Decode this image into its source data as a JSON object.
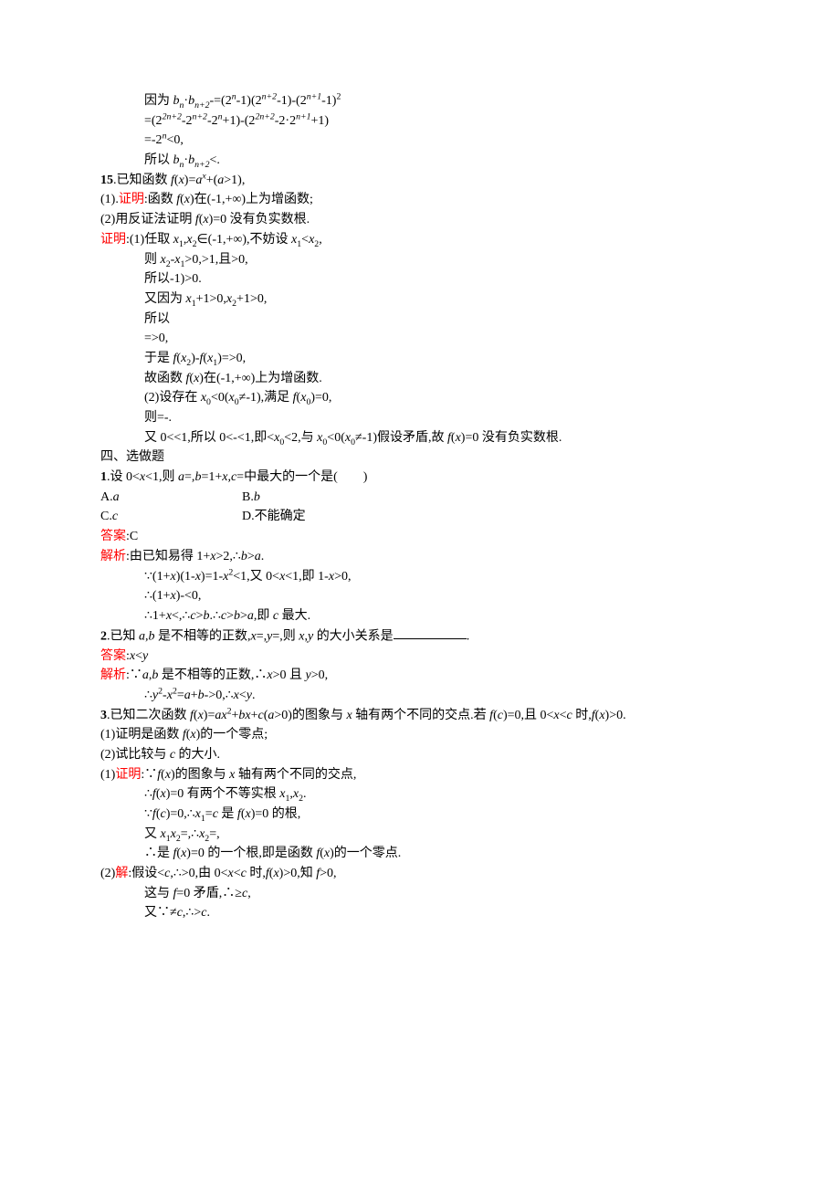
{
  "colors": {
    "red": "#ff0000",
    "text": "#000000",
    "bg": "#ffffff"
  },
  "fonts": {
    "body_family": "SimSun / Times New Roman",
    "body_size_pt": 10
  },
  "prelude": {
    "l1a": "因为 ",
    "l1b": "b",
    "l1c": "n",
    "l1d": "·",
    "l1e": "b",
    "l1f": "n+2",
    "l1g": "-=(2",
    "l1h": "n",
    "l1i": "-1)(2",
    "l1j": "n+2",
    "l1k": "-1)-(2",
    "l1l": "n+1",
    "l1m": "-1)",
    "l1n": "2",
    "l2a": "=(2",
    "l2b": "2n+2",
    "l2c": "-2",
    "l2d": "n+2",
    "l2e": "-2",
    "l2f": "n",
    "l2g": "+1)-(2",
    "l2h": "2n+2",
    "l2i": "-2·2",
    "l2j": "n+1",
    "l2k": "+1)",
    "l3a": "=-2",
    "l3b": "n",
    "l3c": "<0,",
    "l4a": "所以 ",
    "l4b": "b",
    "l4c": "n",
    "l4d": "·",
    "l4e": "b",
    "l4f": "n+2",
    "l4g": "<."
  },
  "q15": {
    "head1": "15",
    "head2": ".已知函数 ",
    "head3": "f",
    "head4": "(",
    "head5": "x",
    "head6": ")=",
    "head7": "a",
    "head8": "x",
    "head9": "+(",
    "head10": "a",
    "head11": ">1),",
    "p1a": "(1).",
    "p1b": "证明",
    "p1c": ":函数 ",
    "p1d": "f",
    "p1e": "(",
    "p1f": "x",
    "p1g": ")在(-1,+∞)上为增函数;",
    "p2a": "(2)用反证法证明 ",
    "p2b": "f",
    "p2c": "(",
    "p2d": "x",
    "p2e": ")=0 没有负实数根.",
    "pfLabel": "证明",
    "pf1": ":(1)任取 ",
    "pf1b": "x",
    "pf1c": "1",
    "pf1d": ",",
    "pf1e": "x",
    "pf1f": "2",
    "pf1g": "∈(-1,+∞),不妨设 ",
    "pf1h": "x",
    "pf1i": "1",
    "pf1j": "<",
    "pf1k": "x",
    "pf1l": "2",
    "pf1m": ",",
    "s1a": "则 ",
    "s1b": "x",
    "s1c": "2",
    "s1d": "-",
    "s1e": "x",
    "s1f": "1",
    "s1g": ">0,>1,且>0,",
    "s2": "所以-1)>0.",
    "s3a": "又因为 ",
    "s3b": "x",
    "s3c": "1",
    "s3d": "+1>0,",
    "s3e": "x",
    "s3f": "2",
    "s3g": "+1>0,",
    "s4": "所以",
    "s5": "=>0,",
    "s6a": "于是 ",
    "s6b": "f",
    "s6c": "(",
    "s6d": "x",
    "s6e": "2",
    "s6f": ")-",
    "s6g": "f",
    "s6h": "(",
    "s6i": "x",
    "s6j": "1",
    "s6k": ")=>0,",
    "s7a": "故函数 ",
    "s7b": "f",
    "s7c": "(",
    "s7d": "x",
    "s7e": ")在(-1,+∞)上为增函数.",
    "s8a": "(2)设存在 ",
    "s8b": "x",
    "s8c": "0",
    "s8d": "<0(",
    "s8e": "x",
    "s8f": "0",
    "s8g": "≠-1),满足 ",
    "s8h": "f",
    "s8i": "(",
    "s8j": "x",
    "s8k": "0",
    "s8l": ")=0,",
    "s9": "则=-.",
    "s10a": "又 0<<1,所以 0<-<1,即<",
    "s10b": "x",
    "s10c": "0",
    "s10d": "<2,与 ",
    "s10e": "x",
    "s10f": "0",
    "s10g": "<0(",
    "s10h": "x",
    "s10i": "0",
    "s10j": "≠-1)假设矛盾,故 ",
    "s10k": "f",
    "s10l": "(",
    "s10m": "x",
    "s10n": ")=0 没有负实数根."
  },
  "sec4": "四、选做题",
  "q1": {
    "stem1": "1",
    "stem2": ".设 0<",
    "stem3": "x",
    "stem4": "<1,则 ",
    "stem5": "a",
    "stem6": "=,",
    "stem7": "b",
    "stem8": "=1+",
    "stem9": "x",
    "stem10": ",",
    "stem11": "c",
    "stem12": "=中最大的一个是(　　)",
    "optA1": "A.",
    "optA2": "a",
    "optB1": "B.",
    "optB2": "b",
    "optC1": "C.",
    "optC2": "c",
    "optD1": "D.不能确定",
    "ansLabel": "答案",
    "ans": ":C",
    "anaLabel": "解析",
    "ana1": ":由已知易得 1+",
    "ana1b": "x",
    "ana1c": ">2,∴",
    "ana1d": "b",
    "ana1e": ">",
    "ana1f": "a",
    "ana1g": ".",
    "e1a": "∵(1+",
    "e1b": "x",
    "e1c": ")(1-",
    "e1d": "x",
    "e1e": ")=1-",
    "e1f": "x",
    "e1g": "2",
    "e1h": "<1,又 0<",
    "e1i": "x",
    "e1j": "<1,即 1-",
    "e1k": "x",
    "e1l": ">0,",
    "e2a": "∴(1+",
    "e2b": "x",
    "e2c": ")-<0,",
    "e3a": "∴1+",
    "e3b": "x",
    "e3c": "<,∴",
    "e3d": "c",
    "e3e": ">",
    "e3f": "b",
    "e3g": ".∴",
    "e3h": "c",
    "e3i": ">",
    "e3j": "b",
    "e3k": ">",
    "e3l": "a",
    "e3m": ",即 ",
    "e3n": "c",
    "e3o": " 最大."
  },
  "q2": {
    "stem1": "2",
    "stem2": ".已知 ",
    "stem3": "a",
    "stem4": ",",
    "stem5": "b",
    "stem6": " 是不相等的正数,",
    "stem7": "x",
    "stem8": "=,",
    "stem9": "y",
    "stem10": "=,则 ",
    "stem11": "x",
    "stem12": ",",
    "stem13": "y",
    "stem14": " 的大小关系是",
    "blankSuffix": ".",
    "ansLabel": "答案",
    "ans1": ":",
    "ans2": "x",
    "ans3": "<",
    "ans4": "y",
    "anaLabel": "解析",
    "ana1": ":∵",
    "ana2": "a",
    "ana3": ",",
    "ana4": "b",
    "ana5": " 是不相等的正数,∴",
    "ana6": "x",
    "ana7": ">0 且 ",
    "ana8": "y",
    "ana9": ">0,",
    "e1a": "∴",
    "e1b": "y",
    "e1c": "2",
    "e1d": "-",
    "e1e": "x",
    "e1f": "2",
    "e1g": "=",
    "e1h": "a",
    "e1i": "+",
    "e1j": "b",
    "e1k": "->0,∴",
    "e1l": "x",
    "e1m": "<",
    "e1n": "y",
    "e1o": "."
  },
  "q3": {
    "stem1": "3",
    "stem2": ".已知二次函数 ",
    "stem3": "f",
    "stem4": "(",
    "stem5": "x",
    "stem6": ")=",
    "stem7": "ax",
    "stem8": "2",
    "stem9": "+",
    "stem10": "bx",
    "stem11": "+",
    "stem12": "c",
    "stem13": "(",
    "stem14": "a",
    "stem15": ">0)的图象与 ",
    "stem16": "x",
    "stem17": " 轴有两个不同的交点.若 ",
    "stem18": "f",
    "stem19": "(",
    "stem20": "c",
    "stem21": ")=0,且 0<",
    "stem22": "x",
    "stem23": "<",
    "stem24": "c",
    "stem25": " 时,",
    "stem26": "f",
    "stem27": "(",
    "stem28": "x",
    "stem29": ")>0.",
    "p1a": "(1)证明是函数 ",
    "p1b": "f",
    "p1c": "(",
    "p1d": "x",
    "p1e": ")的一个零点;",
    "p2a": "(2)试比较与 ",
    "p2b": "c",
    "p2c": " 的大小.",
    "pf1a": "(1)",
    "pf1Label": "证明",
    "pf1b": ":∵",
    "pf1c": "f",
    "pf1d": "(",
    "pf1e": "x",
    "pf1f": ")的图象与 ",
    "pf1g": "x",
    "pf1h": " 轴有两个不同的交点,",
    "s1a": "∴",
    "s1b": "f",
    "s1c": "(",
    "s1d": "x",
    "s1e": ")=0 有两个不等实根 ",
    "s1f": "x",
    "s1g": "1",
    "s1h": ",",
    "s1i": "x",
    "s1j": "2",
    "s1k": ".",
    "s2a": "∵",
    "s2b": "f",
    "s2c": "(",
    "s2d": "c",
    "s2e": ")=0,∴",
    "s2f": "x",
    "s2g": "1",
    "s2h": "=",
    "s2i": "c",
    "s2j": " 是 ",
    "s2k": "f",
    "s2l": "(",
    "s2m": "x",
    "s2n": ")=0 的根,",
    "s3a": "又 ",
    "s3b": "x",
    "s3c": "1",
    "s3d": "x",
    "s3e": "2",
    "s3f": "=,∴",
    "s3g": "x",
    "s3h": "2",
    "s3i": "=,",
    "s4a": "∴是 ",
    "s4b": "f",
    "s4c": "(",
    "s4d": "x",
    "s4e": ")=0 的一个根,即是函数 ",
    "s4f": "f",
    "s4g": "(",
    "s4h": "x",
    "s4i": ")的一个零点.",
    "pf2a": "(2)",
    "pf2Label": "解",
    "pf2b": ":假设<",
    "pf2c": "c",
    "pf2d": ",∴>0,由 0<",
    "pf2e": "x",
    "pf2f": "<",
    "pf2g": "c",
    "pf2h": " 时,",
    "pf2i": "f",
    "pf2j": "(",
    "pf2k": "x",
    "pf2l": ")>0,知 ",
    "pf2m": "f",
    "pf2n": ">0,",
    "t1a": "这与 ",
    "t1b": "f",
    "t1c": "=0 矛盾,∴≥",
    "t1d": "c",
    "t1e": ",",
    "t2a": "又∵≠",
    "t2b": "c",
    "t2c": ",∴>",
    "t2d": "c",
    "t2e": "."
  }
}
